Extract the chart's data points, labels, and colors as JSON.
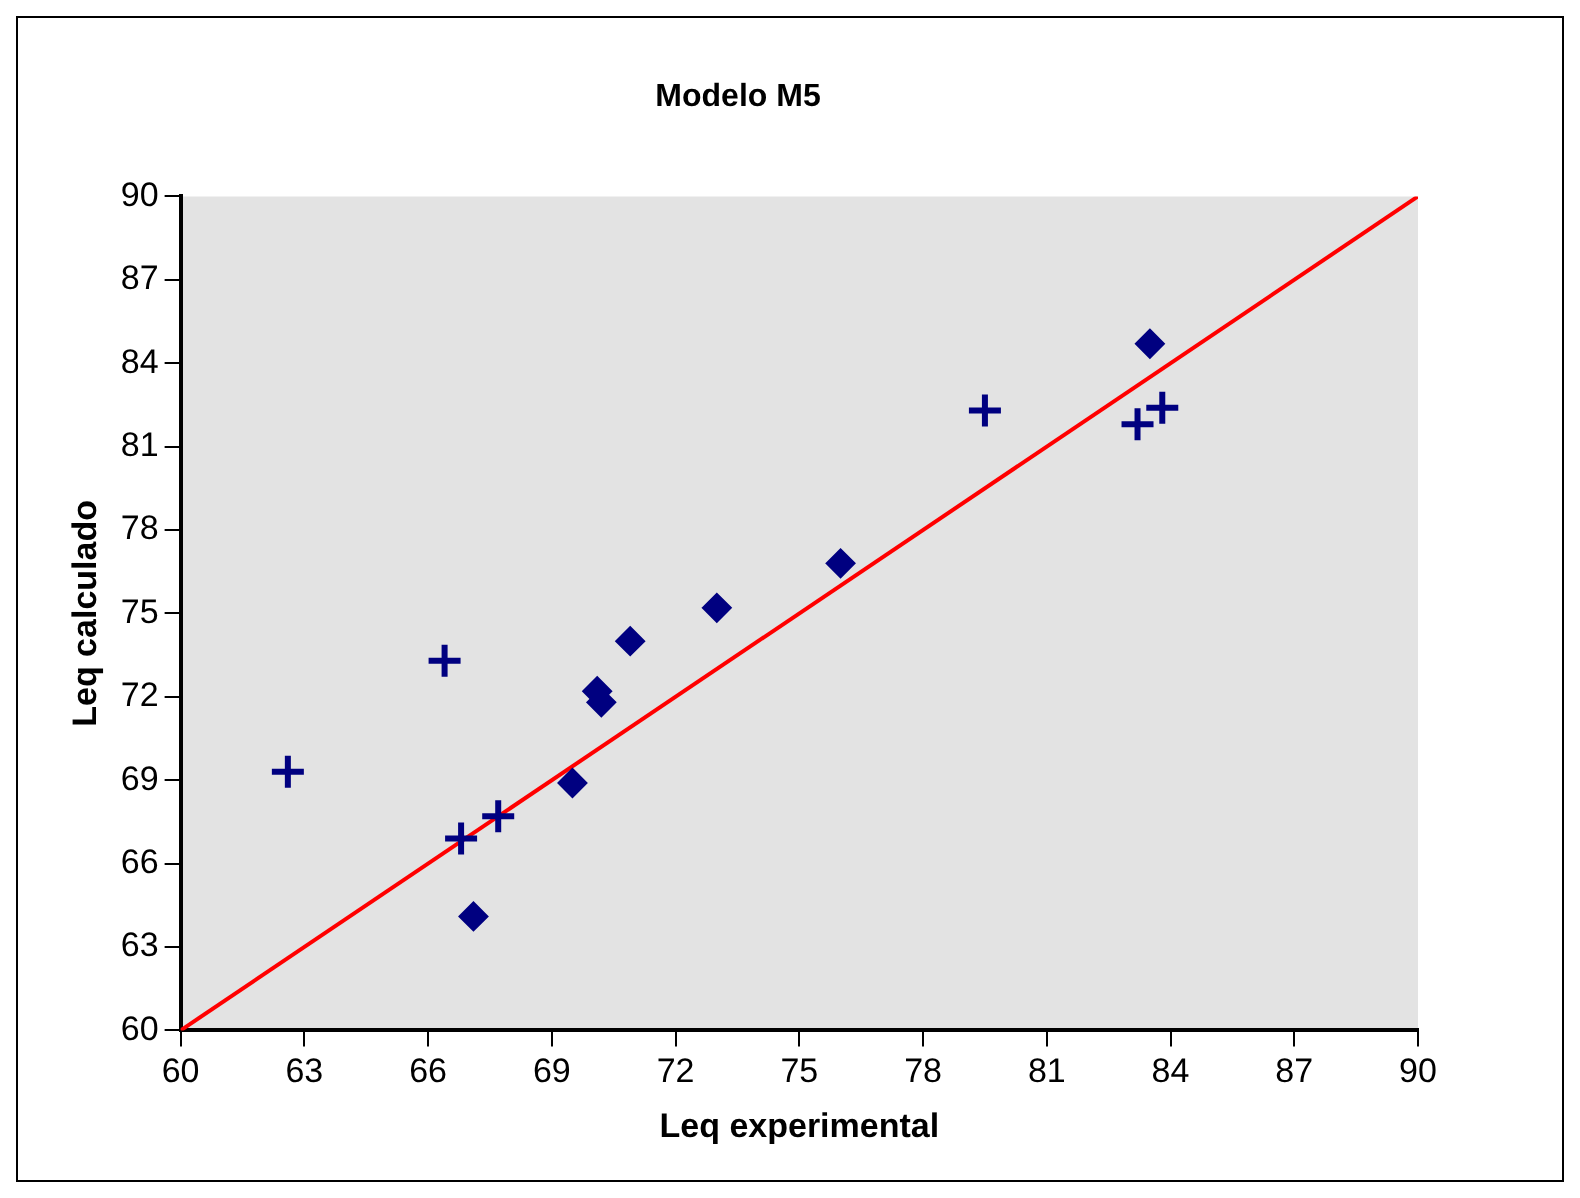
{
  "chart_data": {
    "type": "scatter",
    "title": "Modelo M5",
    "xlabel": "Leq experimental",
    "ylabel": "Leq calculado",
    "xlim": [
      60,
      90
    ],
    "ylim": [
      60,
      90
    ],
    "xticks": [
      60,
      63,
      66,
      69,
      72,
      75,
      78,
      81,
      84,
      87,
      90
    ],
    "yticks": [
      60,
      63,
      66,
      69,
      72,
      75,
      78,
      81,
      84,
      87,
      90
    ],
    "grid": false,
    "legend": false,
    "series": [
      {
        "color": "#000080",
        "marker": "diamond",
        "x": [
          67.1,
          69.5,
          70.1,
          70.2,
          70.9,
          73.0,
          76.0,
          83.5
        ],
        "values": [
          64.1,
          68.9,
          72.2,
          71.8,
          74.0,
          75.2,
          76.8,
          84.7
        ]
      },
      {
        "color": "#000080",
        "marker": "cross",
        "x": [
          62.6,
          66.4,
          66.8,
          67.7,
          79.5,
          83.2,
          83.8
        ],
        "values": [
          69.3,
          73.3,
          66.9,
          67.7,
          82.3,
          81.8,
          82.4
        ]
      },
      {
        "type": "line",
        "color": "#ff0000",
        "marker": "none",
        "x": [
          60,
          90
        ],
        "values": [
          60,
          90
        ]
      }
    ]
  }
}
